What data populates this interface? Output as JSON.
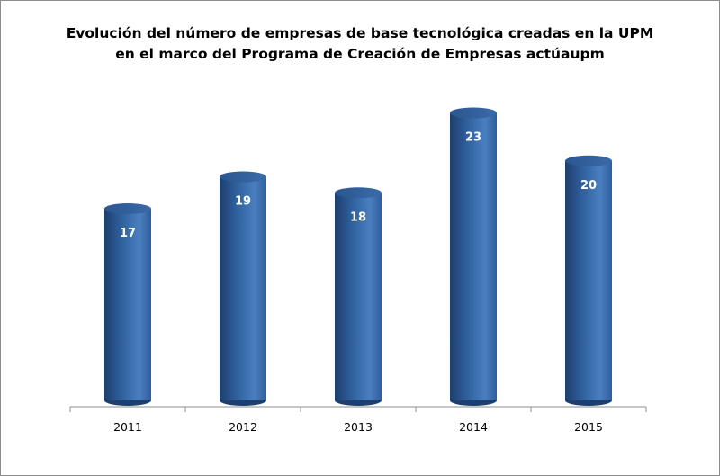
{
  "chart_data": {
    "type": "bar",
    "style": "3d-cylinder",
    "title_lines": [
      "Evolución del número de empresas de base tecnológica creadas en la UPM",
      "en el marco del Programa de Creación de Empresas actúaupm"
    ],
    "categories": [
      "2011",
      "2012",
      "2013",
      "2014",
      "2015"
    ],
    "values": [
      17,
      19,
      18,
      23,
      20
    ],
    "data_labels": [
      "17",
      "19",
      "18",
      "23",
      "20"
    ],
    "xlabel": "",
    "ylabel": "",
    "ylim": [
      5,
      25
    ],
    "grid": false,
    "legend": "none",
    "colors": {
      "bar": "#2f5f9b",
      "bar_dark": "#1d3f6e",
      "bar_light": "#4a7fc0",
      "label": "#ffffff",
      "axis": "#8c8c8c"
    }
  }
}
